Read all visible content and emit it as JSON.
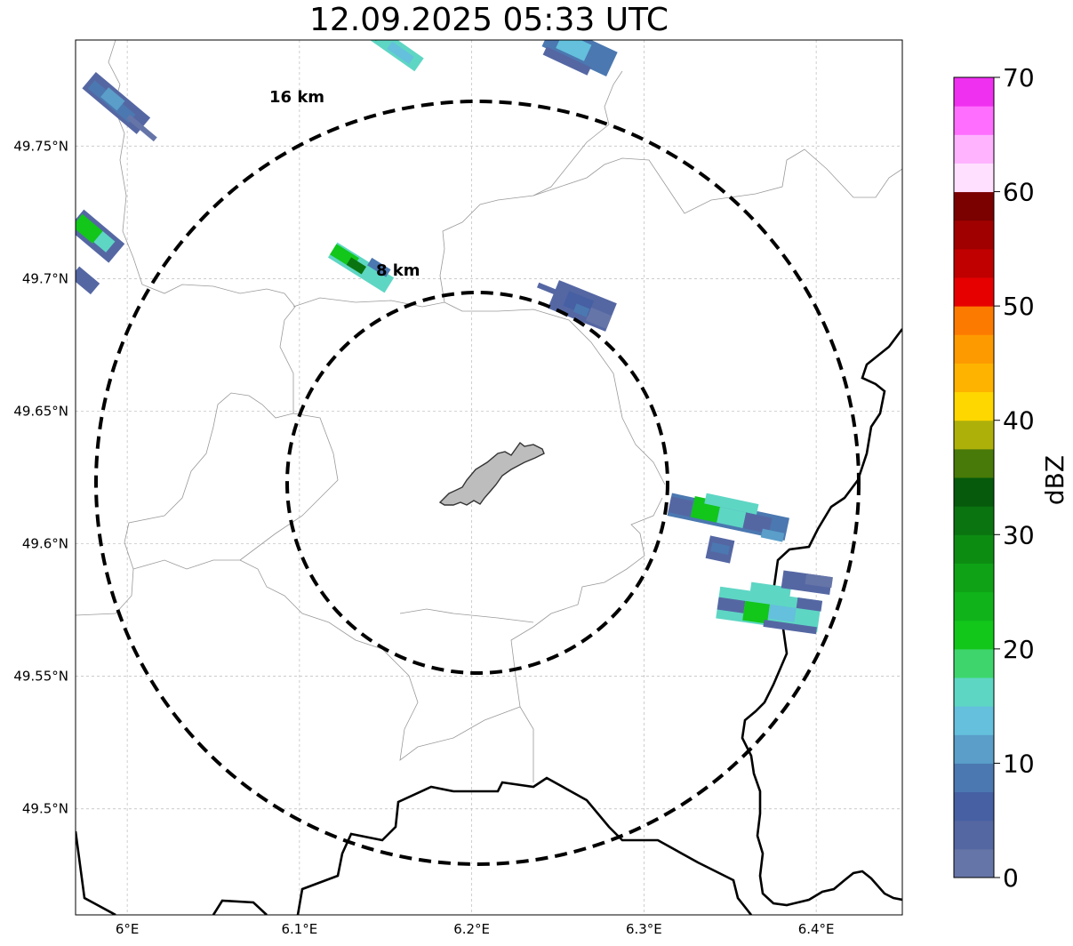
{
  "title": "12.09.2025 05:33 UTC",
  "map": {
    "lon_range": [
      5.97,
      6.45
    ],
    "lat_range": [
      49.46,
      49.79
    ],
    "lon_ticks": [
      {
        "value": 6.0,
        "label": "6°E"
      },
      {
        "value": 6.1,
        "label": "6.1°E"
      },
      {
        "value": 6.2,
        "label": "6.2°E"
      },
      {
        "value": 6.3,
        "label": "6.3°E"
      },
      {
        "value": 6.4,
        "label": "6.4°E"
      }
    ],
    "lat_ticks": [
      {
        "value": 49.75,
        "label": "49.75°N"
      },
      {
        "value": 49.7,
        "label": "49.7°N"
      },
      {
        "value": 49.65,
        "label": "49.65°N"
      },
      {
        "value": 49.6,
        "label": "49.6°N"
      },
      {
        "value": 49.55,
        "label": "49.55°N"
      },
      {
        "value": 49.5,
        "label": "49.5°N"
      }
    ],
    "grid": true,
    "range_rings": [
      {
        "label": "8 km"
      },
      {
        "label": "16 km"
      }
    ]
  },
  "colorbar": {
    "label": "dBZ",
    "min": 0,
    "max": 70,
    "ticks": [
      {
        "value": 0,
        "label": "0"
      },
      {
        "value": 10,
        "label": "10"
      },
      {
        "value": 20,
        "label": "20"
      },
      {
        "value": 30,
        "label": "30"
      },
      {
        "value": 40,
        "label": "40"
      },
      {
        "value": 50,
        "label": "50"
      },
      {
        "value": 60,
        "label": "60"
      },
      {
        "value": 70,
        "label": "70"
      }
    ],
    "colors": [
      "#6675a8",
      "#5567a3",
      "#4660a3",
      "#4b78b0",
      "#5a9ec9",
      "#64c0dd",
      "#5ed6c4",
      "#3ed66c",
      "#12c61a",
      "#10b41a",
      "#0fa216",
      "#0d8c12",
      "#0a7410",
      "#055a0b",
      "#477a08",
      "#aeb00a",
      "#fed700",
      "#feb300",
      "#fd9a00",
      "#fd7a00",
      "#e60000",
      "#c00000",
      "#a00000",
      "#7b0000",
      "#ffe0ff",
      "#ffb3ff",
      "#ff6eff",
      "#f030f0"
    ]
  }
}
